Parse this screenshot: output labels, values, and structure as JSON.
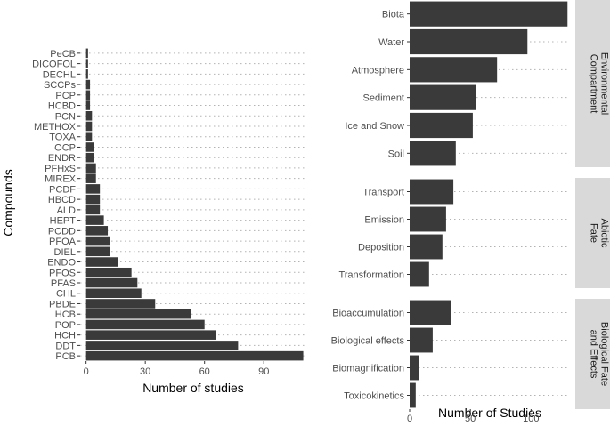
{
  "chart_data": [
    {
      "type": "bar",
      "orientation": "horizontal",
      "xlabel": "Number of studies",
      "ylabel": "Compounds",
      "xlim": [
        -3,
        112
      ],
      "xticks": [
        0,
        30,
        60,
        90
      ],
      "categories": [
        "PeCB",
        "DICOFOL",
        "DECHL",
        "SCCPs",
        "PCP",
        "HCBD",
        "PCN",
        "METHOX",
        "TOXA",
        "OCP",
        "ENDR",
        "PFHxS",
        "MIREX",
        "PCDF",
        "HBCD",
        "ALD",
        "HEPT",
        "PCDD",
        "PFOA",
        "DIEL",
        "ENDO",
        "PFOS",
        "PFAS",
        "CHL",
        "PBDE",
        "HCB",
        "POP",
        "HCH",
        "DDT",
        "PCB"
      ],
      "values": [
        1,
        1,
        1,
        2,
        2,
        2,
        3,
        3,
        3,
        4,
        4,
        5,
        5,
        7,
        7,
        7,
        9,
        11,
        12,
        12,
        16,
        23,
        26,
        28,
        35,
        53,
        60,
        66,
        77,
        110
      ],
      "bar_color": "#3a3a3a"
    },
    {
      "type": "bar",
      "orientation": "horizontal",
      "xlabel": "Number of Studies",
      "xlim": [
        0,
        132
      ],
      "xticks": [
        0,
        50,
        100
      ],
      "facets": [
        {
          "strip": "Environmental Compartment",
          "categories": [
            "Biota",
            "Water",
            "Atmosphere",
            "Sediment",
            "Ice and Snow",
            "Soil"
          ],
          "values": [
            130,
            97,
            72,
            55,
            52,
            38
          ]
        },
        {
          "strip": "Abiotic Fate",
          "categories": [
            "Transport",
            "Emission",
            "Deposition",
            "Transformation"
          ],
          "values": [
            36,
            30,
            27,
            16
          ]
        },
        {
          "strip": "Biological Fate and Effects",
          "categories": [
            "Bioaccumulation",
            "Biological effects",
            "Biomagnification",
            "Toxicokinetics"
          ],
          "values": [
            34,
            19,
            8,
            5
          ]
        }
      ],
      "bar_color": "#3a3a3a"
    }
  ]
}
